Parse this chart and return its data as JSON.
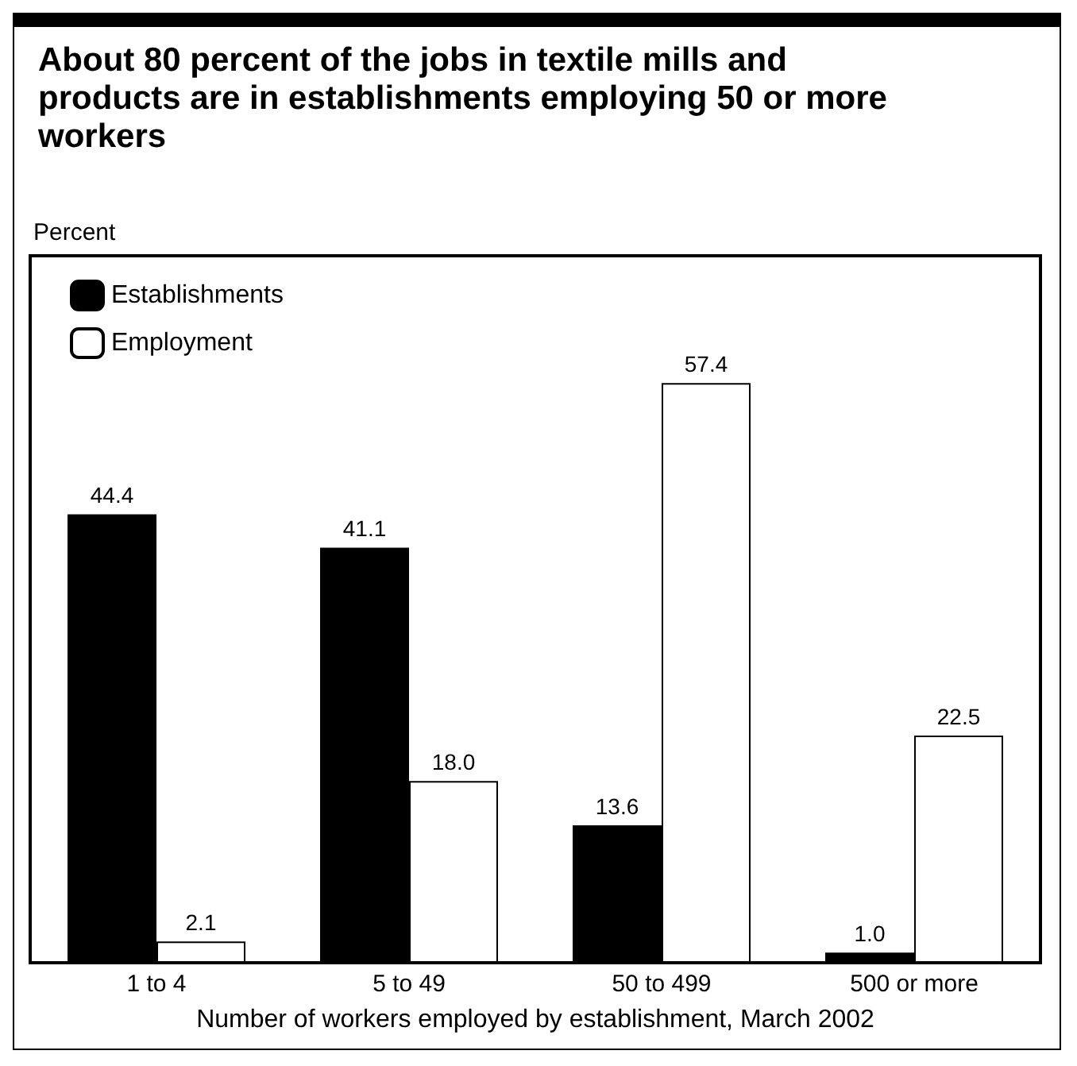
{
  "chart_data": {
    "type": "bar",
    "title": "About 80 percent of the jobs in textile mills and products are in establishments employing 50 or more workers",
    "annotations": [
      "Percent"
    ],
    "xlabel": "Number of workers employed by establishment, March 2002",
    "categories": [
      "1 to 4",
      "5 to 49",
      "50 to 499",
      "500 or more"
    ],
    "series": [
      {
        "name": "Establishments",
        "color": "#000000",
        "values": [
          44.4,
          41.1,
          13.6,
          1.0
        ],
        "value_labels": [
          "44.4",
          "41.1",
          "13.6",
          "1.0"
        ]
      },
      {
        "name": "Employment",
        "color": "#ffffff",
        "values": [
          2.1,
          18.0,
          57.4,
          22.5
        ],
        "value_labels": [
          "2.1",
          "18.0",
          "57.4",
          "22.5"
        ]
      }
    ],
    "legend": "top left",
    "tick_labels": "x"
  }
}
